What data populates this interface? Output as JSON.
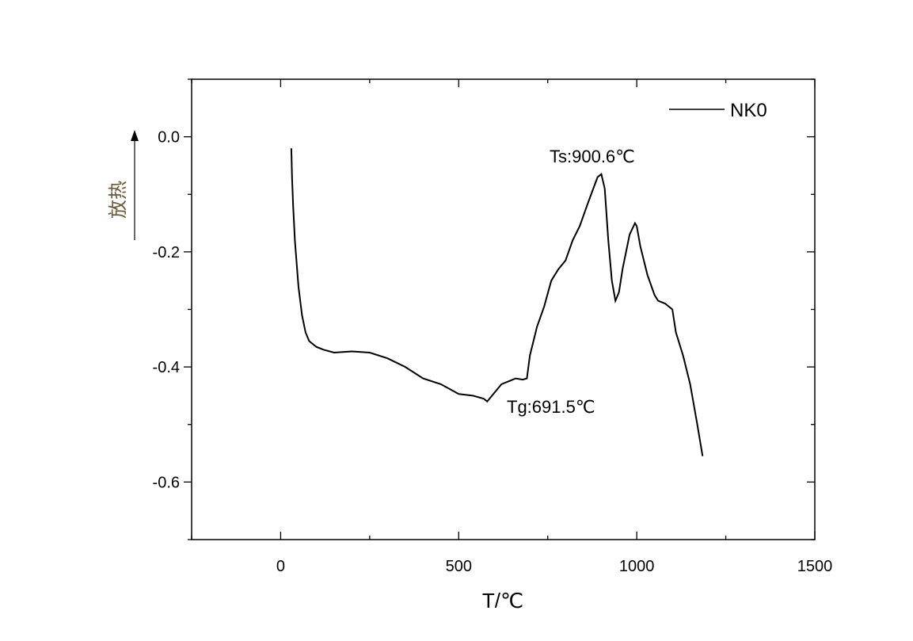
{
  "chart_data": {
    "type": "line",
    "title": "",
    "xlabel": "T/℃",
    "ylabel": "放热",
    "xlim": [
      -250,
      1500
    ],
    "ylim": [
      -0.7,
      0.1
    ],
    "x_ticks": [
      0,
      500,
      1000,
      1500
    ],
    "y_ticks": [
      0.0,
      -0.2,
      -0.4,
      -0.6
    ],
    "x_tick_labels": [
      "0",
      "500",
      "1000",
      "1500"
    ],
    "y_tick_labels": [
      "0.0",
      "-0.2",
      "-0.4",
      "-0.6"
    ],
    "legend_position": "top-right",
    "grid": false,
    "series": [
      {
        "name": "NK0",
        "color": "#000000",
        "x": [
          30,
          32,
          35,
          40,
          50,
          60,
          70,
          80,
          90,
          100,
          120,
          150,
          200,
          250,
          300,
          350,
          400,
          450,
          500,
          540,
          570,
          580,
          600,
          620,
          640,
          660,
          680,
          691.5,
          700,
          720,
          740,
          760,
          780,
          800,
          820,
          840,
          860,
          875,
          890,
          900.6,
          910,
          920,
          930,
          940,
          950,
          960,
          980,
          995,
          1000,
          1010,
          1030,
          1050,
          1060,
          1080,
          1100,
          1110,
          1130,
          1150,
          1170,
          1185
        ],
        "y": [
          -0.02,
          -0.07,
          -0.12,
          -0.18,
          -0.26,
          -0.31,
          -0.34,
          -0.355,
          -0.36,
          -0.365,
          -0.37,
          -0.375,
          -0.373,
          -0.375,
          -0.385,
          -0.4,
          -0.42,
          -0.43,
          -0.447,
          -0.45,
          -0.455,
          -0.46,
          -0.445,
          -0.43,
          -0.425,
          -0.42,
          -0.422,
          -0.42,
          -0.38,
          -0.33,
          -0.295,
          -0.25,
          -0.23,
          -0.215,
          -0.18,
          -0.155,
          -0.12,
          -0.095,
          -0.07,
          -0.065,
          -0.09,
          -0.18,
          -0.25,
          -0.285,
          -0.27,
          -0.23,
          -0.17,
          -0.15,
          -0.155,
          -0.19,
          -0.24,
          -0.275,
          -0.285,
          -0.29,
          -0.3,
          -0.34,
          -0.38,
          -0.43,
          -0.5,
          -0.555
        ]
      }
    ],
    "annotations": [
      {
        "text": "Ts:900.6℃",
        "x": 900.6,
        "y": -0.065
      },
      {
        "text": "Tg:691.5℃",
        "x": 691.5,
        "y": -0.42
      }
    ]
  }
}
